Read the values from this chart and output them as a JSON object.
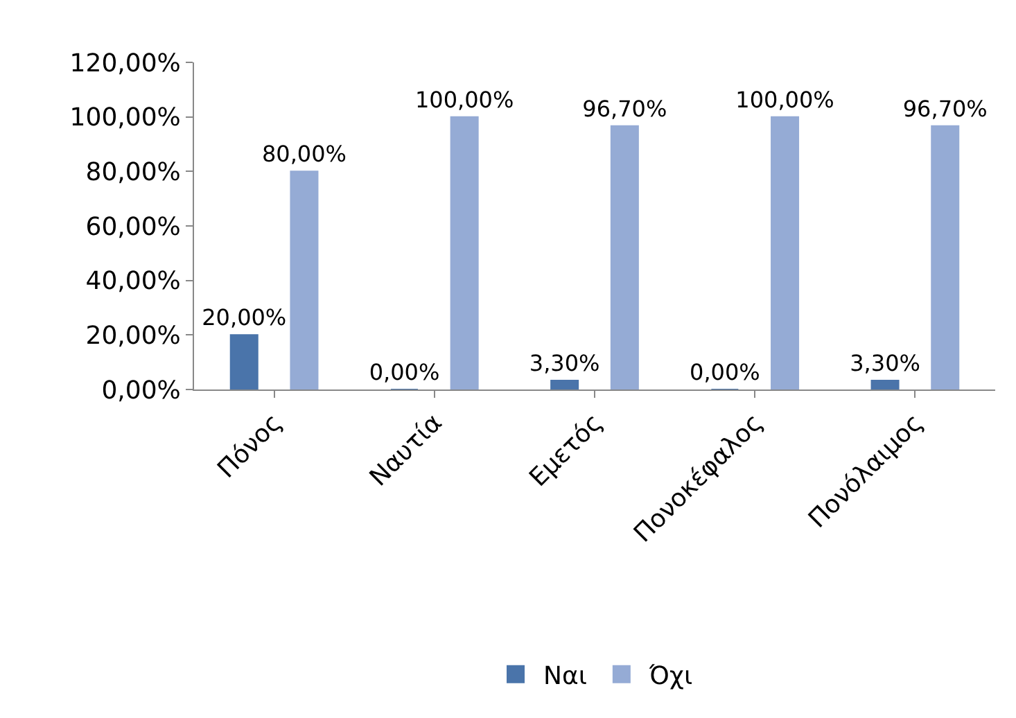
{
  "chart_data": {
    "type": "bar",
    "categories": [
      "Πόνος",
      "Ναυτία",
      "Εμετός",
      "Πονοκέφαλος",
      "Πονόλαιμος"
    ],
    "series": [
      {
        "name": "Ναι",
        "color": "#4a74aa",
        "values": [
          20,
          0,
          3.3,
          0,
          3.3
        ],
        "value_labels": [
          "20,00%",
          "0,00%",
          "3,30%",
          "0,00%",
          "3,30%"
        ]
      },
      {
        "name": "Όχι",
        "color": "#95abd5",
        "values": [
          80,
          100,
          96.7,
          100,
          96.7
        ],
        "value_labels": [
          "80,00%",
          "100,00%",
          "96,70%",
          "100,00%",
          "96,70%"
        ]
      }
    ],
    "ylim": [
      0,
      120
    ],
    "yticks": [
      {
        "value": 0,
        "label": "0,00%"
      },
      {
        "value": 20,
        "label": "20,00%"
      },
      {
        "value": 40,
        "label": "40,00%"
      },
      {
        "value": 60,
        "label": "60,00%"
      },
      {
        "value": 80,
        "label": "80,00%"
      },
      {
        "value": 100,
        "label": "100,00%"
      },
      {
        "value": 120,
        "label": "120,00%"
      }
    ],
    "legend": "bottom"
  }
}
